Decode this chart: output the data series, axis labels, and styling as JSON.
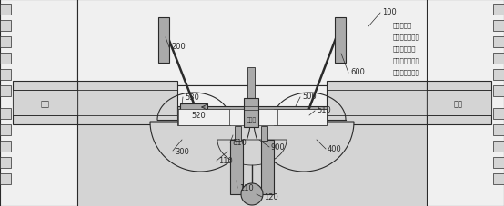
{
  "bg_color": "#d4d4d4",
  "line_color": "#555555",
  "dark_color": "#2a2a2a",
  "white_color": "#f0f0f0",
  "light_gray": "#aaaaaa",
  "fig_width": 5.54,
  "fig_height": 2.28,
  "annotation_lines": [
    "启动状态下",
    "可变压缩活塞将",
    "缩回至最低点",
    "低于压缩活塞与",
    "燃烧室的结合面"
  ]
}
